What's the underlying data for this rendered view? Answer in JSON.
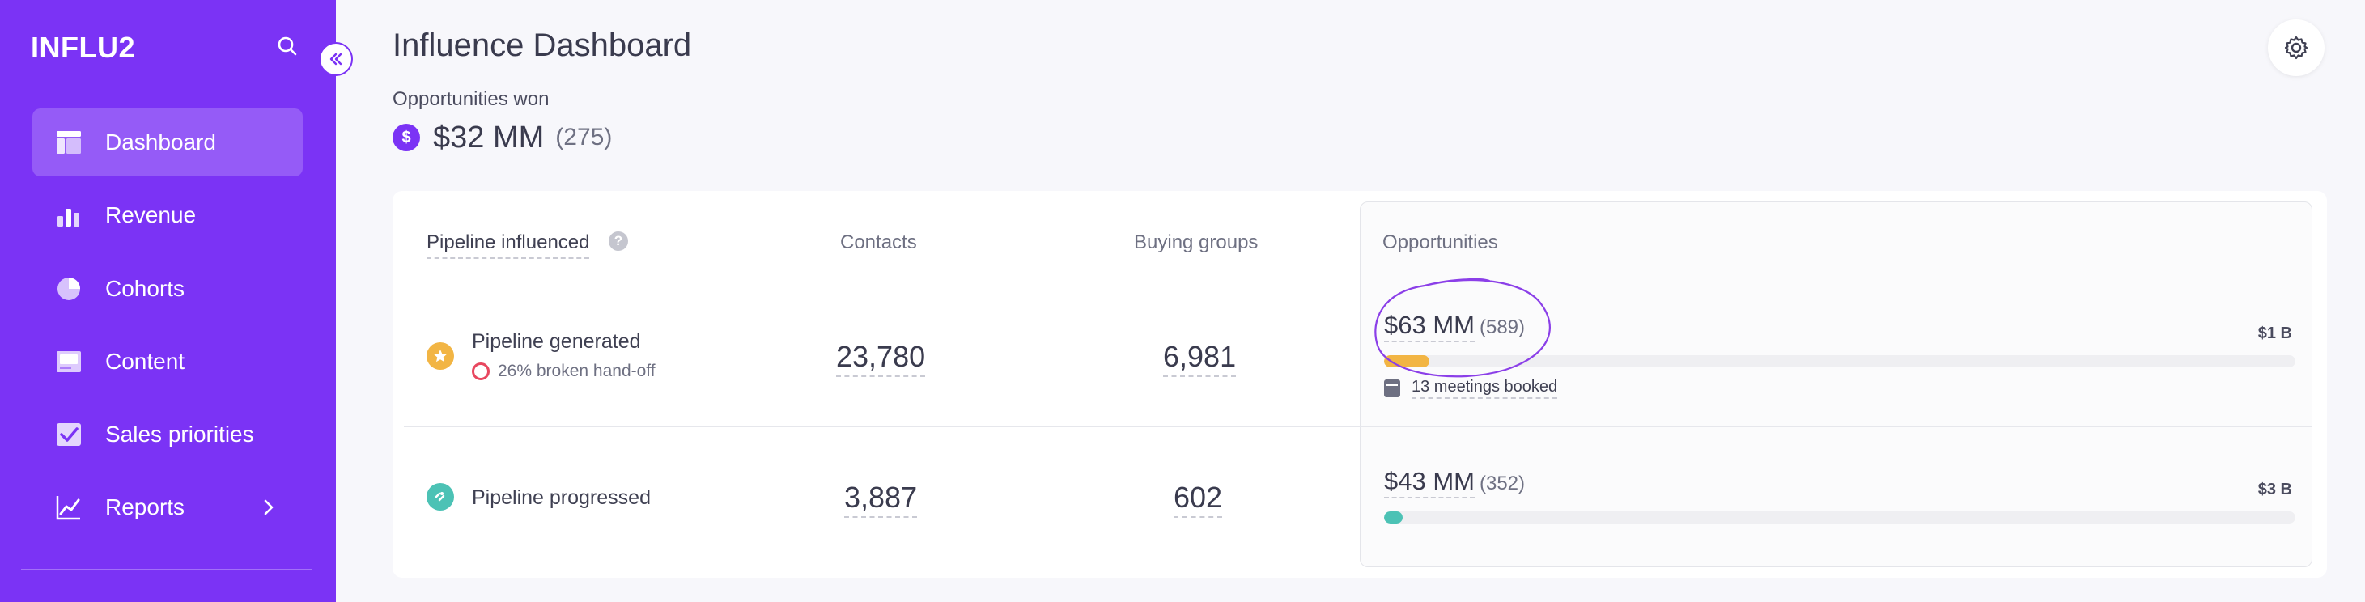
{
  "sidebar": {
    "logo": "INFLU2",
    "items": [
      {
        "label": "Dashboard",
        "icon": "dashboard-icon",
        "active": true
      },
      {
        "label": "Revenue",
        "icon": "bar-chart-icon"
      },
      {
        "label": "Cohorts",
        "icon": "pie-chart-icon"
      },
      {
        "label": "Content",
        "icon": "content-icon"
      },
      {
        "label": "Sales priorities",
        "icon": "checkbox-icon"
      },
      {
        "label": "Reports",
        "icon": "line-chart-icon",
        "has_submenu": true
      }
    ]
  },
  "header": {
    "title": "Influence Dashboard"
  },
  "summary": {
    "opportunities_won_label": "Opportunities won",
    "currency_symbol": "$",
    "opportunities_won_value": "$32 MM",
    "opportunities_won_count": "(275)"
  },
  "table": {
    "headers": {
      "pipeline": "Pipeline influenced",
      "help": "?",
      "contacts": "Contacts",
      "buying_groups": "Buying groups",
      "opportunities": "Opportunities"
    },
    "rows": [
      {
        "label": "Pipeline generated",
        "sub_note": "26% broken hand-off",
        "contacts": "23,780",
        "buying_groups": "6,981",
        "opp_value": "$63 MM",
        "opp_count": "(589)",
        "opp_max": "$1 B",
        "opp_fraction": 0.05,
        "meetings_note": "13 meetings booked",
        "color": "#f2b544"
      },
      {
        "label": "Pipeline progressed",
        "contacts": "3,887",
        "buying_groups": "602",
        "opp_value": "$43 MM",
        "opp_count": "(352)",
        "opp_max": "$3 B",
        "opp_fraction": 0.02,
        "color": "#4cc2b5"
      }
    ]
  },
  "colors": {
    "brand": "#7b33f5",
    "warning_ring": "#e8475f"
  }
}
